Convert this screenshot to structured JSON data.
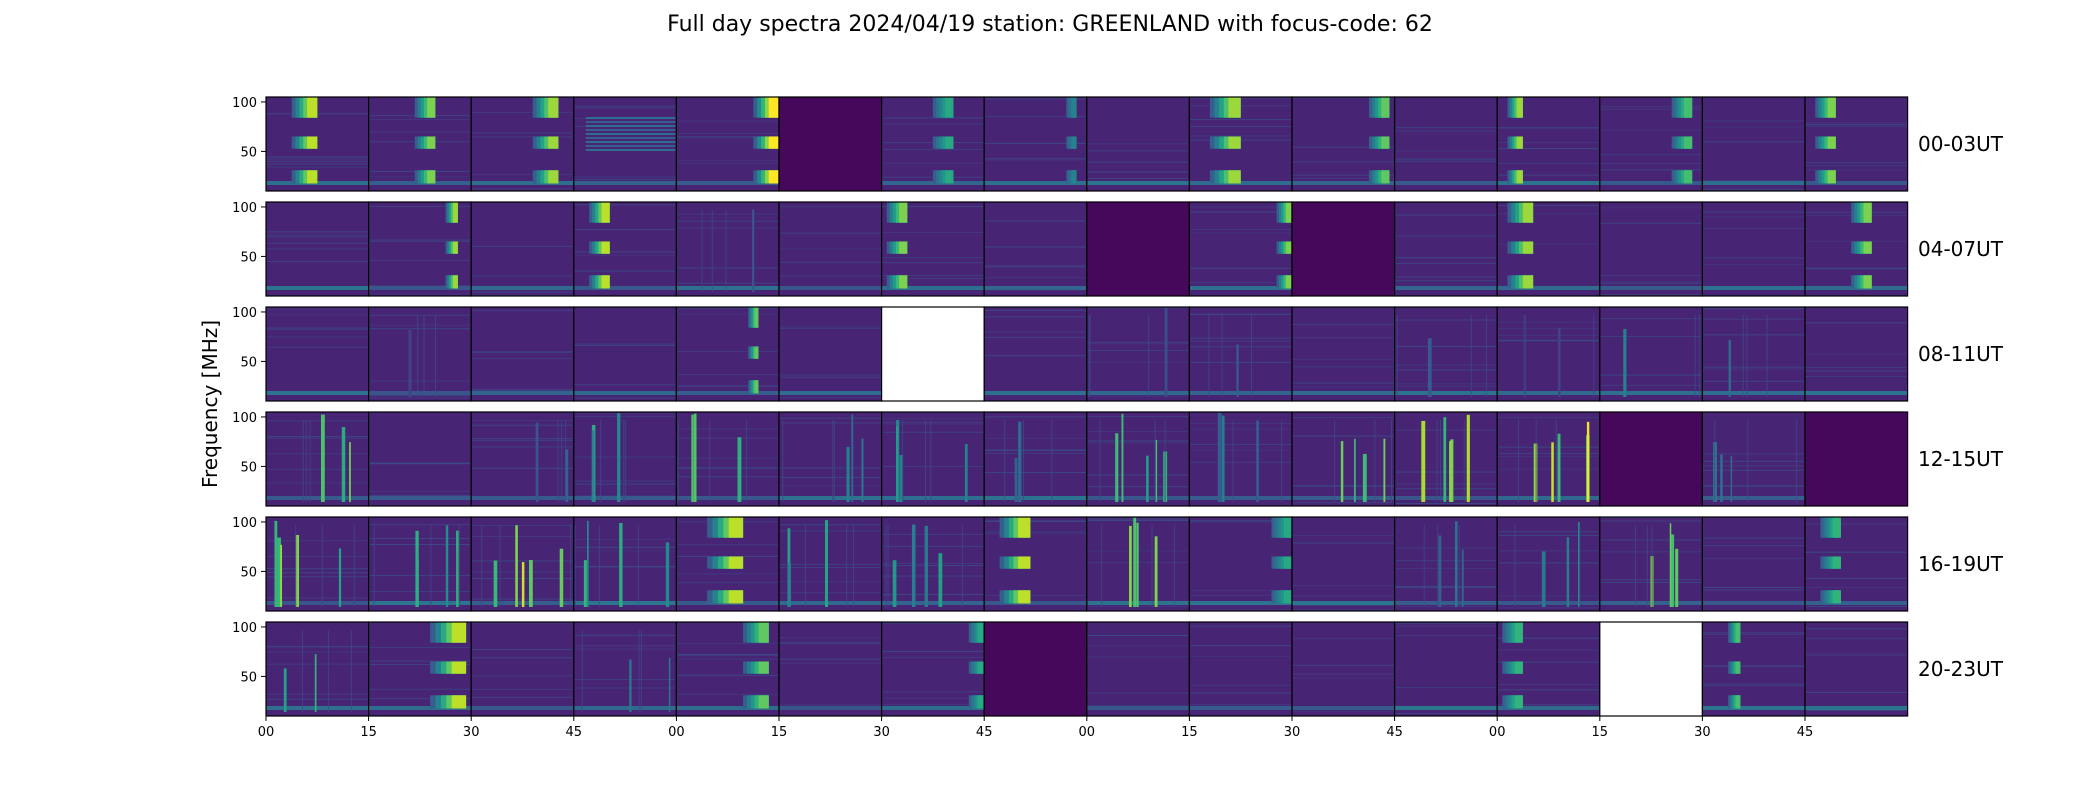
{
  "chart_data": {
    "type": "heatmap",
    "title": "Full day spectra 2024/04/19 station: GREENLAND with focus-code: 62",
    "ylabel": "Frequency [MHz]",
    "y_ticks": [
      "100",
      "50"
    ],
    "x_ticks": [
      "00",
      "15",
      "30",
      "45",
      "00",
      "15",
      "30",
      "45",
      "00",
      "15",
      "30",
      "45",
      "00",
      "15",
      "30",
      "45"
    ],
    "columns_per_row": 16,
    "rows": [
      {
        "label": "00-03UT",
        "panels": [
          {
            "type": "bands",
            "pos": 0.25,
            "w": 0.25,
            "lvl": 0.9
          },
          {
            "type": "bands",
            "pos": 0.45,
            "w": 0.2,
            "lvl": 0.8
          },
          {
            "type": "bands",
            "pos": 0.6,
            "w": 0.25,
            "lvl": 0.85
          },
          {
            "type": "stripes",
            "lvl": 0.35
          },
          {
            "type": "bands",
            "pos": 0.75,
            "w": 0.25,
            "lvl": 1.0
          },
          {
            "type": "dark"
          },
          {
            "type": "bands",
            "pos": 0.5,
            "w": 0.2,
            "lvl": 0.6
          },
          {
            "type": "bands",
            "pos": 0.8,
            "w": 0.1,
            "lvl": 0.45
          },
          {
            "type": "quiet"
          },
          {
            "type": "bands",
            "pos": 0.2,
            "w": 0.3,
            "lvl": 0.85
          },
          {
            "type": "bands",
            "pos": 0.75,
            "w": 0.2,
            "lvl": 0.75
          },
          {
            "type": "quiet"
          },
          {
            "type": "bands",
            "pos": 0.1,
            "w": 0.15,
            "lvl": 0.85
          },
          {
            "type": "bands",
            "pos": 0.7,
            "w": 0.2,
            "lvl": 0.7
          },
          {
            "type": "quiet"
          },
          {
            "type": "bands",
            "pos": 0.1,
            "w": 0.2,
            "lvl": 0.8
          }
        ]
      },
      {
        "label": "04-07UT",
        "panels": [
          {
            "type": "quiet"
          },
          {
            "type": "bands",
            "pos": 0.75,
            "w": 0.12,
            "lvl": 0.85
          },
          {
            "type": "quiet"
          },
          {
            "type": "bands",
            "pos": 0.15,
            "w": 0.2,
            "lvl": 0.9
          },
          {
            "type": "spikes",
            "n": 1,
            "lvl": 0.4
          },
          {
            "type": "quiet"
          },
          {
            "type": "bands",
            "pos": 0.05,
            "w": 0.2,
            "lvl": 0.8
          },
          {
            "type": "quiet"
          },
          {
            "type": "dark"
          },
          {
            "type": "bands",
            "pos": 0.85,
            "w": 0.15,
            "lvl": 0.8
          },
          {
            "type": "dark"
          },
          {
            "type": "quiet"
          },
          {
            "type": "bands",
            "pos": 0.1,
            "w": 0.25,
            "lvl": 0.85
          },
          {
            "type": "quiet"
          },
          {
            "type": "quiet"
          },
          {
            "type": "bands",
            "pos": 0.45,
            "w": 0.2,
            "lvl": 0.8
          }
        ]
      },
      {
        "label": "08-11UT",
        "panels": [
          {
            "type": "quiet"
          },
          {
            "type": "spikes",
            "n": 1,
            "lvl": 0.25
          },
          {
            "type": "quiet"
          },
          {
            "type": "quiet"
          },
          {
            "type": "bands",
            "pos": 0.7,
            "w": 0.1,
            "lvl": 0.75
          },
          {
            "type": "quiet"
          },
          {
            "type": "blank"
          },
          {
            "type": "quiet"
          },
          {
            "type": "spikes",
            "n": 1,
            "lvl": 0.25
          },
          {
            "type": "spikes",
            "n": 1,
            "lvl": 0.3
          },
          {
            "type": "quiet"
          },
          {
            "type": "spikes",
            "n": 1,
            "lvl": 0.3
          },
          {
            "type": "spikes",
            "n": 1,
            "lvl": 0.25
          },
          {
            "type": "spikes",
            "n": 1,
            "lvl": 0.55
          },
          {
            "type": "spikes",
            "n": 1,
            "lvl": 0.35
          },
          {
            "type": "quiet"
          }
        ]
      },
      {
        "label": "12-15UT",
        "panels": [
          {
            "type": "spikes",
            "n": 3,
            "lvl": 0.8
          },
          {
            "type": "quiet"
          },
          {
            "type": "spikes",
            "n": 2,
            "lvl": 0.4
          },
          {
            "type": "spikes",
            "n": 3,
            "lvl": 0.65
          },
          {
            "type": "spikes",
            "n": 3,
            "lvl": 0.75
          },
          {
            "type": "spikes",
            "n": 3,
            "lvl": 0.45
          },
          {
            "type": "spikes",
            "n": 4,
            "lvl": 0.6
          },
          {
            "type": "spikes",
            "n": 2,
            "lvl": 0.4
          },
          {
            "type": "spikes",
            "n": 5,
            "lvl": 0.75
          },
          {
            "type": "spikes",
            "n": 3,
            "lvl": 0.45
          },
          {
            "type": "spikes",
            "n": 4,
            "lvl": 0.9
          },
          {
            "type": "spikes",
            "n": 5,
            "lvl": 1.0
          },
          {
            "type": "spikes",
            "n": 5,
            "lvl": 1.0
          },
          {
            "type": "dark"
          },
          {
            "type": "spikes",
            "n": 3,
            "lvl": 0.45
          },
          {
            "type": "dark"
          }
        ]
      },
      {
        "label": "16-19UT",
        "panels": [
          {
            "type": "spikes",
            "n": 5,
            "lvl": 0.85
          },
          {
            "type": "spikes",
            "n": 4,
            "lvl": 0.7
          },
          {
            "type": "spikes",
            "n": 5,
            "lvl": 1.0
          },
          {
            "type": "spikes",
            "n": 4,
            "lvl": 0.7
          },
          {
            "type": "bands",
            "pos": 0.3,
            "w": 0.35,
            "lvl": 0.9
          },
          {
            "type": "spikes",
            "n": 3,
            "lvl": 0.6
          },
          {
            "type": "spikes",
            "n": 4,
            "lvl": 0.6
          },
          {
            "type": "bands",
            "pos": 0.15,
            "w": 0.3,
            "lvl": 0.9
          },
          {
            "type": "spikes",
            "n": 4,
            "lvl": 1.0
          },
          {
            "type": "bands",
            "pos": 0.8,
            "w": 0.2,
            "lvl": 0.6
          },
          {
            "type": "quiet"
          },
          {
            "type": "spikes",
            "n": 3,
            "lvl": 0.45
          },
          {
            "type": "spikes",
            "n": 3,
            "lvl": 0.6
          },
          {
            "type": "spikes",
            "n": 4,
            "lvl": 0.85
          },
          {
            "type": "quiet"
          },
          {
            "type": "bands",
            "pos": 0.15,
            "w": 0.2,
            "lvl": 0.65
          }
        ]
      },
      {
        "label": "20-23UT",
        "panels": [
          {
            "type": "spikes",
            "n": 2,
            "lvl": 0.75
          },
          {
            "type": "bands",
            "pos": 0.6,
            "w": 0.35,
            "lvl": 0.9
          },
          {
            "type": "quiet"
          },
          {
            "type": "spikes",
            "n": 2,
            "lvl": 0.5
          },
          {
            "type": "bands",
            "pos": 0.65,
            "w": 0.25,
            "lvl": 0.75
          },
          {
            "type": "quiet"
          },
          {
            "type": "bands",
            "pos": 0.85,
            "w": 0.15,
            "lvl": 0.6
          },
          {
            "type": "dark"
          },
          {
            "type": "quiet"
          },
          {
            "type": "quiet"
          },
          {
            "type": "quiet"
          },
          {
            "type": "quiet"
          },
          {
            "type": "bands",
            "pos": 0.05,
            "w": 0.2,
            "lvl": 0.65
          },
          {
            "type": "blank"
          },
          {
            "type": "bands",
            "pos": 0.25,
            "w": 0.12,
            "lvl": 0.7
          },
          {
            "type": "quiet"
          }
        ]
      }
    ]
  }
}
